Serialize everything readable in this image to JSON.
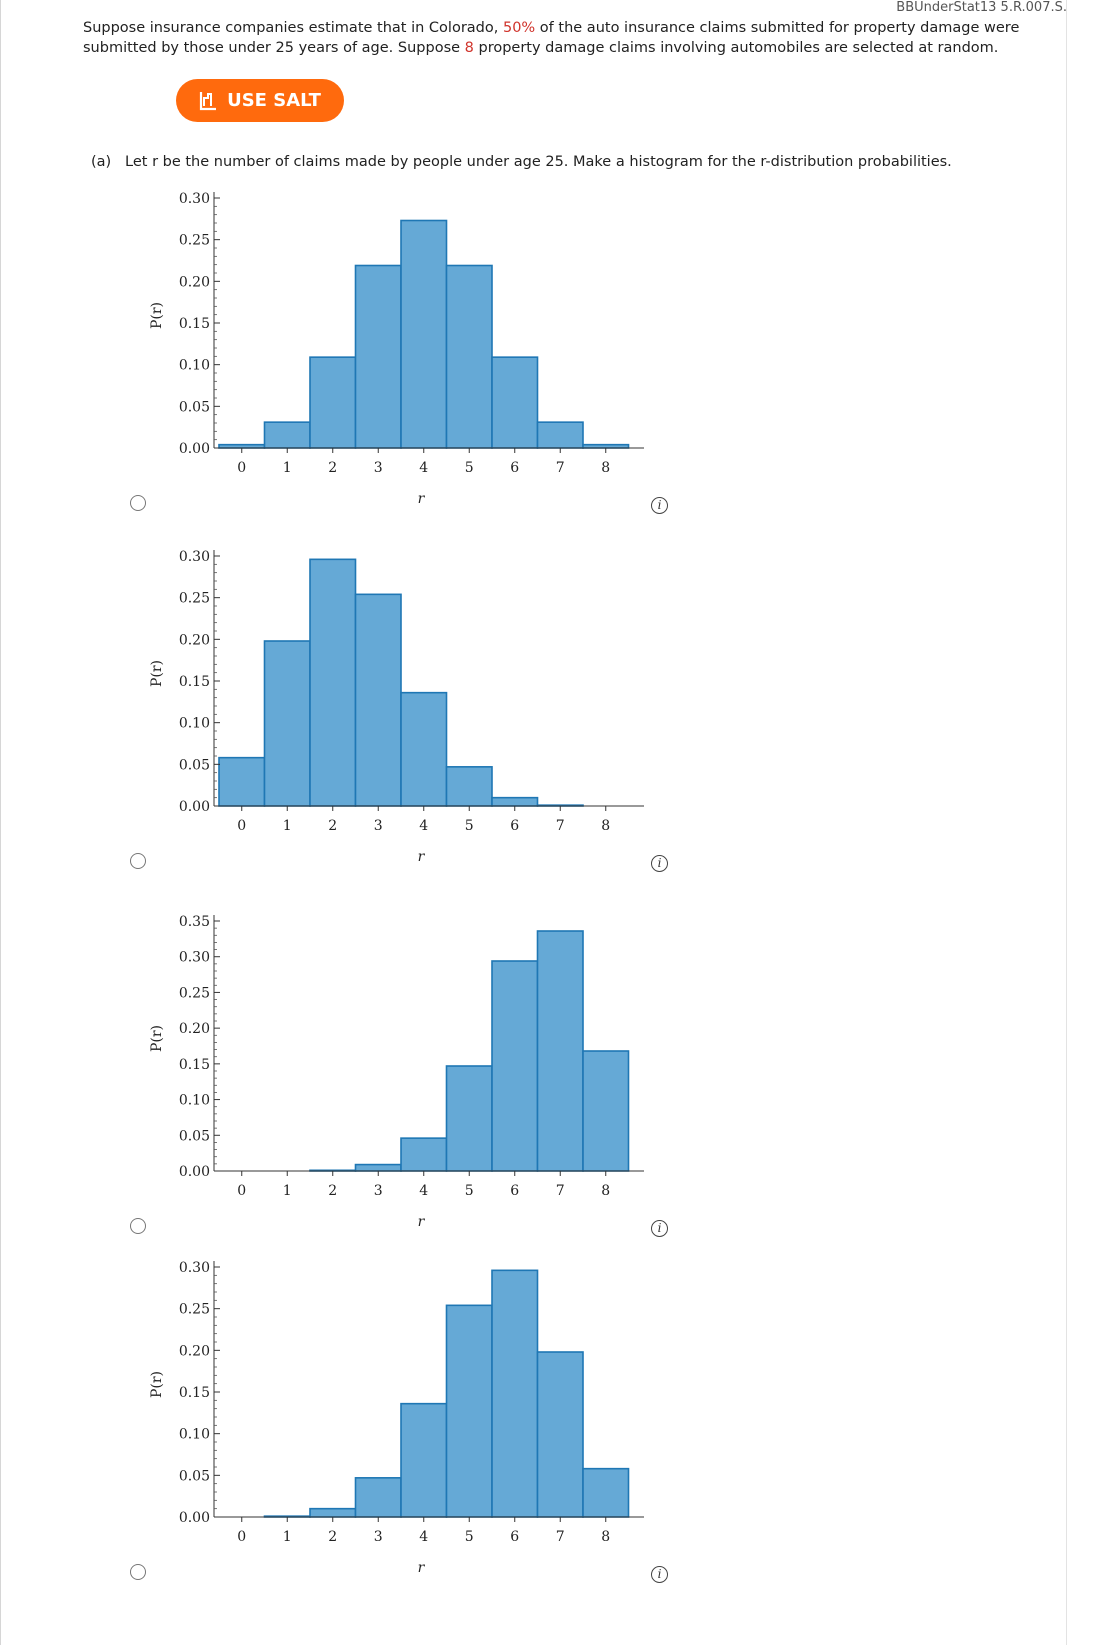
{
  "header": {
    "reference": "BBUnderStat13 5.R.007.S."
  },
  "question": {
    "intro_before_pct": "Suppose insurance companies estimate that in Colorado, ",
    "pct": "50%",
    "intro_mid": " of the auto insurance claims submitted for property damage were submitted by those under 25 years of age. Suppose ",
    "n": "8",
    "intro_after": " property damage claims involving automobiles are selected at random.",
    "salt_label": "USE SALT",
    "salt_icon": "chart-line-icon",
    "part_a": "(a)   Let r be the number of claims made by people under age 25. Make a histogram for the r-distribution probabilities."
  },
  "options": [
    {
      "chart_data": {
        "type": "bar",
        "x": [
          0,
          1,
          2,
          3,
          4,
          5,
          6,
          7,
          8
        ],
        "values": [
          0.004,
          0.031,
          0.109,
          0.219,
          0.273,
          0.219,
          0.109,
          0.031,
          0.004
        ],
        "xlabel": "r",
        "ylabel": "P(r)",
        "ylim": [
          0,
          0.3
        ],
        "yticks": [
          "0.00",
          "0.05",
          "0.10",
          "0.15",
          "0.20",
          "0.25",
          "0.30"
        ],
        "xticks": [
          "0",
          "1",
          "2",
          "3",
          "4",
          "5",
          "6",
          "7",
          "8"
        ]
      }
    },
    {
      "chart_data": {
        "type": "bar",
        "x": [
          0,
          1,
          2,
          3,
          4,
          5,
          6,
          7,
          8
        ],
        "values": [
          0.058,
          0.198,
          0.296,
          0.254,
          0.136,
          0.047,
          0.01,
          0.001,
          0.0
        ],
        "xlabel": "r",
        "ylabel": "P(r)",
        "ylim": [
          0,
          0.3
        ],
        "yticks": [
          "0.00",
          "0.05",
          "0.10",
          "0.15",
          "0.20",
          "0.25",
          "0.30"
        ],
        "xticks": [
          "0",
          "1",
          "2",
          "3",
          "4",
          "5",
          "6",
          "7",
          "8"
        ]
      }
    },
    {
      "chart_data": {
        "type": "bar",
        "x": [
          0,
          1,
          2,
          3,
          4,
          5,
          6,
          7,
          8
        ],
        "values": [
          0.0,
          0.0,
          0.001,
          0.009,
          0.046,
          0.147,
          0.294,
          0.336,
          0.168
        ],
        "xlabel": "r",
        "ylabel": "P(r)",
        "ylim": [
          0,
          0.35
        ],
        "yticks": [
          "0.00",
          "0.05",
          "0.10",
          "0.15",
          "0.20",
          "0.25",
          "0.30",
          "0.35"
        ],
        "xticks": [
          "0",
          "1",
          "2",
          "3",
          "4",
          "5",
          "6",
          "7",
          "8"
        ]
      }
    },
    {
      "chart_data": {
        "type": "bar",
        "x": [
          0,
          1,
          2,
          3,
          4,
          5,
          6,
          7,
          8
        ],
        "values": [
          0.0,
          0.001,
          0.01,
          0.047,
          0.136,
          0.254,
          0.296,
          0.198,
          0.058
        ],
        "xlabel": "r",
        "ylabel": "P(r)",
        "ylim": [
          0,
          0.3
        ],
        "yticks": [
          "0.00",
          "0.05",
          "0.10",
          "0.15",
          "0.20",
          "0.25",
          "0.30"
        ],
        "xticks": [
          "0",
          "1",
          "2",
          "3",
          "4",
          "5",
          "6",
          "7",
          "8"
        ]
      }
    }
  ],
  "colors": {
    "bar_fill": "#65a9d6",
    "bar_stroke": "#1f77b4",
    "accent": "#ff6a0d",
    "highlight": "#d0342c"
  }
}
